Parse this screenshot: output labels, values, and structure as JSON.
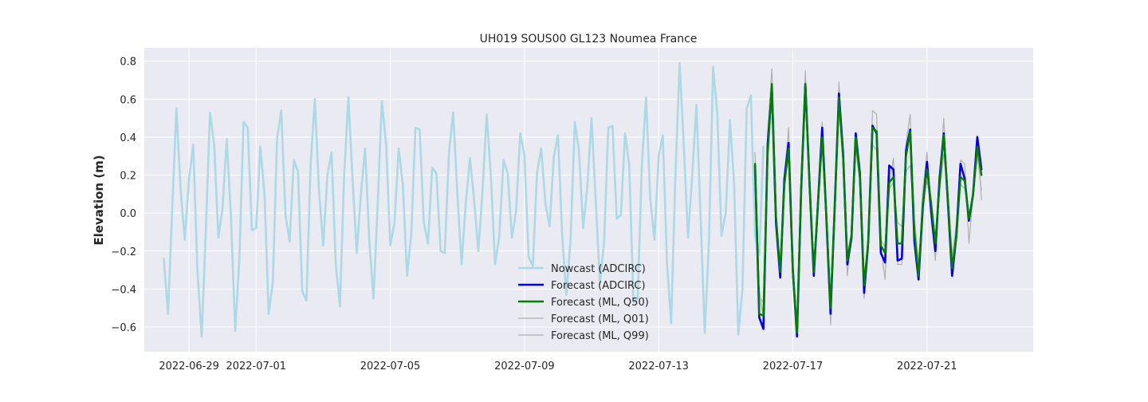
{
  "chart_data": {
    "type": "line",
    "title": "UH019 SOUS00 GL123 Noumea France",
    "xlabel": "",
    "ylabel": "Elevation (m)",
    "x_type": "date",
    "xlim": [
      "2022-06-27T16:00",
      "2022-07-24T04:00"
    ],
    "ylim": [
      -0.73,
      0.87
    ],
    "x_ticks": [
      "2022-06-29",
      "2022-07-01",
      "2022-07-05",
      "2022-07-09",
      "2022-07-13",
      "2022-07-17",
      "2022-07-21"
    ],
    "y_ticks": [
      -0.6,
      -0.4,
      -0.2,
      0.0,
      0.2,
      0.4,
      0.6,
      0.8
    ],
    "y_tick_labels": [
      "−0.6",
      "−0.4",
      "−0.2",
      "0.0",
      "0.2",
      "0.4",
      "0.6",
      "0.8"
    ],
    "grid": true,
    "legend_position": "lower-center",
    "background_color": "#eaeaf2",
    "series": [
      {
        "name": "Nowcast (ADCIRC)",
        "color": "#add8e6",
        "x_start": "2022-06-28T06:00",
        "x_step_hours": 3,
        "values": [
          -0.24,
          -0.53,
          0.03,
          0.55,
          0.12,
          -0.14,
          0.18,
          0.36,
          -0.3,
          -0.65,
          -0.1,
          0.53,
          0.36,
          -0.13,
          0.03,
          0.39,
          -0.02,
          -0.62,
          -0.25,
          0.48,
          0.45,
          -0.09,
          -0.08,
          0.35,
          0.1,
          -0.53,
          -0.36,
          0.39,
          0.54,
          -0.01,
          -0.15,
          0.28,
          0.22,
          -0.41,
          -0.46,
          0.25,
          0.6,
          0.12,
          -0.17,
          0.2,
          0.32,
          -0.27,
          -0.49,
          0.2,
          0.61,
          0.18,
          -0.21,
          0.1,
          0.34,
          -0.15,
          -0.45,
          0.05,
          0.59,
          0.36,
          -0.17,
          -0.05,
          0.34,
          0.15,
          -0.33,
          -0.11,
          0.45,
          0.44,
          -0.05,
          -0.16,
          0.24,
          0.21,
          -0.2,
          -0.21,
          0.32,
          0.53,
          0.1,
          -0.27,
          0.05,
          0.29,
          0.07,
          -0.2,
          0.12,
          0.52,
          0.19,
          -0.27,
          -0.12,
          0.28,
          0.21,
          -0.13,
          0.01,
          0.42,
          0.3,
          -0.23,
          -0.28,
          0.21,
          0.34,
          0.05,
          -0.07,
          0.3,
          0.41,
          -0.12,
          -0.43,
          -0.14,
          0.48,
          0.33,
          -0.08,
          0.14,
          0.5,
          0.06,
          -0.37,
          -0.15,
          0.45,
          0.46,
          -0.03,
          -0.01,
          0.42,
          0.25,
          -0.47,
          -0.45,
          0.25,
          0.61,
          0.08,
          -0.14,
          0.3,
          0.41,
          -0.27,
          -0.58,
          0.2,
          0.79,
          0.36,
          -0.13,
          0.19,
          0.57,
          -0.02,
          -0.63,
          -0.15,
          0.77,
          0.52,
          -0.12,
          0.0,
          0.49,
          0.16,
          -0.64,
          -0.4,
          0.55,
          0.62,
          -0.12,
          -0.22,
          0.35
        ]
      },
      {
        "name": "Forecast (ADCIRC)",
        "color": "#0000e0",
        "x_start": "2022-07-15T21:00",
        "x_step_hours": 3,
        "values": [
          0.25,
          -0.55,
          -0.61,
          0.36,
          0.66,
          -0.05,
          -0.34,
          0.18,
          0.37,
          -0.3,
          -0.65,
          0.13,
          0.68,
          0.15,
          -0.33,
          0.05,
          0.45,
          -0.02,
          -0.53,
          0.04,
          0.63,
          0.31,
          -0.27,
          -0.13,
          0.42,
          0.21,
          -0.42,
          -0.15,
          0.46,
          0.42,
          -0.21,
          -0.26,
          0.25,
          0.23,
          -0.25,
          -0.24,
          0.33,
          0.44,
          -0.15,
          -0.35,
          0.03,
          0.27,
          0.01,
          -0.2,
          0.18,
          0.42,
          0.05,
          -0.33,
          -0.12,
          0.26,
          0.18,
          -0.04,
          0.1,
          0.4,
          0.23
        ]
      },
      {
        "name": "Forecast (ML, Q50)",
        "color": "#008000",
        "x_start": "2022-07-15T21:00",
        "x_step_hours": 3,
        "values": [
          0.26,
          -0.53,
          -0.54,
          0.32,
          0.68,
          -0.02,
          -0.31,
          0.15,
          0.34,
          -0.31,
          -0.63,
          0.14,
          0.68,
          0.15,
          -0.31,
          0.05,
          0.4,
          -0.01,
          -0.5,
          0.03,
          0.61,
          0.29,
          -0.25,
          -0.12,
          0.4,
          0.19,
          -0.38,
          -0.15,
          0.45,
          0.43,
          -0.17,
          -0.21,
          0.16,
          0.19,
          -0.16,
          -0.16,
          0.3,
          0.43,
          -0.1,
          -0.33,
          0.05,
          0.23,
          0.05,
          -0.16,
          0.15,
          0.41,
          0.07,
          -0.29,
          -0.13,
          0.19,
          0.17,
          -0.03,
          0.1,
          0.35,
          0.2
        ]
      },
      {
        "name": "Forecast (ML, Q01)",
        "color": "#b0b0b0",
        "x_start": "2022-07-15T21:00",
        "x_step_hours": 3,
        "values": [
          0.32,
          -0.44,
          -0.47,
          0.42,
          0.76,
          0.02,
          -0.29,
          0.2,
          0.45,
          -0.25,
          -0.64,
          0.23,
          0.75,
          0.14,
          -0.31,
          0.09,
          0.48,
          0.02,
          -0.59,
          0.0,
          0.69,
          0.28,
          -0.33,
          -0.11,
          0.4,
          0.16,
          -0.45,
          -0.2,
          0.54,
          0.52,
          -0.18,
          -0.35,
          0.15,
          0.29,
          -0.27,
          -0.27,
          0.37,
          0.52,
          -0.16,
          -0.33,
          0.12,
          0.32,
          -0.04,
          -0.25,
          0.13,
          0.5,
          0.04,
          -0.25,
          -0.07,
          0.28,
          0.26,
          -0.16,
          0.09,
          0.41,
          0.07
        ]
      },
      {
        "name": "Forecast (ML, Q99)",
        "color": "#b0b0b0",
        "x_start": "2022-07-15T21:00",
        "x_step_hours": 3,
        "values": [
          0.2,
          -0.4,
          -0.56,
          0.26,
          0.6,
          -0.03,
          -0.27,
          0.18,
          0.3,
          -0.27,
          -0.59,
          0.09,
          0.64,
          0.14,
          -0.27,
          0.04,
          0.35,
          -0.01,
          -0.46,
          0.01,
          0.54,
          0.26,
          -0.22,
          -0.1,
          0.34,
          0.16,
          -0.33,
          -0.16,
          0.36,
          0.33,
          -0.14,
          -0.18,
          0.13,
          0.16,
          -0.05,
          -0.07,
          0.22,
          0.25,
          -0.03,
          -0.25,
          0.02,
          0.17,
          0.04,
          -0.16,
          0.11,
          0.31,
          0.1,
          -0.22,
          -0.06,
          0.15,
          0.13,
          0.0,
          0.07,
          0.3,
          0.12
        ]
      }
    ]
  }
}
